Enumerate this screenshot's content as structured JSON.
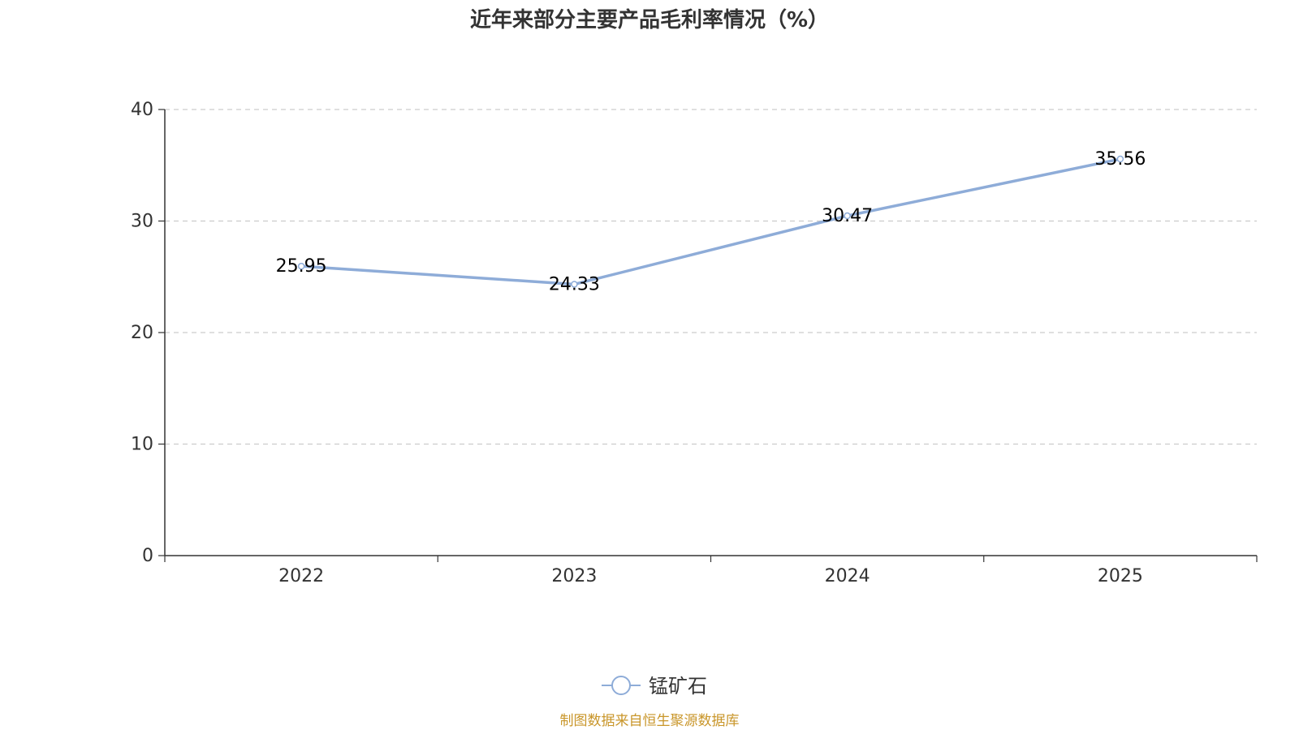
{
  "chart_data": {
    "type": "line",
    "title": "近年来部分主要产品毛利率情况（%）",
    "xlabel": "",
    "ylabel": "",
    "categories": [
      "2022",
      "2023",
      "2024",
      "2025"
    ],
    "ylim": [
      0,
      40
    ],
    "yticks": [
      0,
      10,
      20,
      30,
      40
    ],
    "grid": true,
    "legend_position": "bottom-center",
    "series": [
      {
        "name": "锰矿石",
        "values": [
          25.95,
          24.33,
          30.47,
          35.56
        ],
        "labels": [
          "25.95",
          "24.33",
          "30.47",
          "35.56"
        ],
        "color": "#8eacd8"
      }
    ]
  },
  "source_text": "制图数据来自恒生聚源数据库",
  "colors": {
    "title": "#333333",
    "axis": "#333333",
    "tick_text": "#333333",
    "grid": "#cccccc",
    "data_label": "#000000",
    "source": "#c9962a"
  }
}
